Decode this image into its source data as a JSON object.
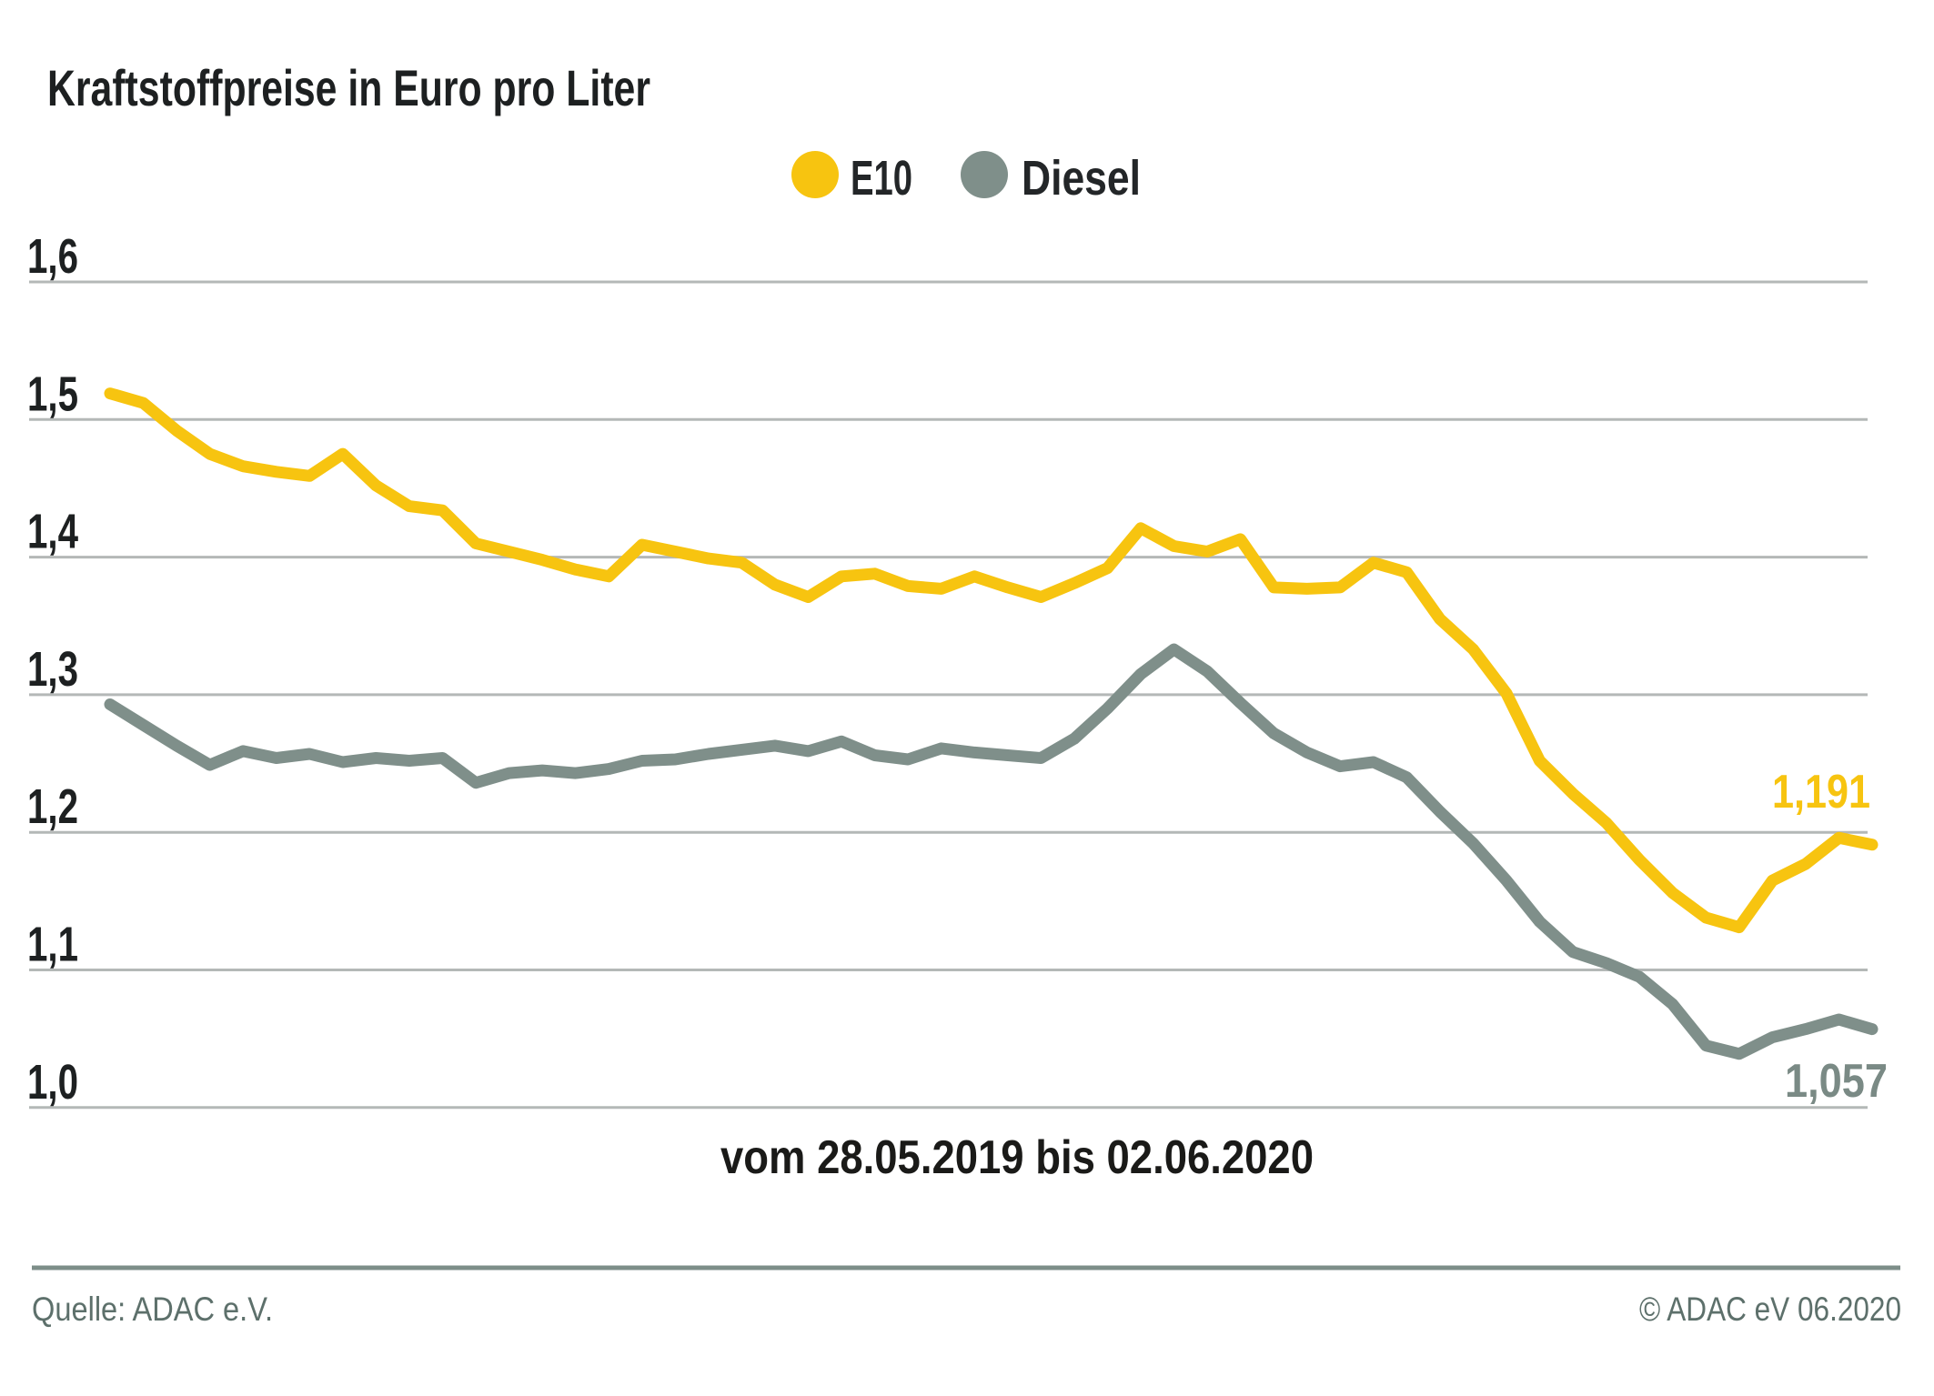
{
  "chart": {
    "title": "Kraftstoffpreise in Euro pro Liter",
    "caption": "vom 28.05.2019 bis 02.06.2020",
    "source": "Quelle: ADAC e.V.",
    "copyright": "© ADAC eV  06.2020",
    "end_labels": {
      "e10": "1,191",
      "diesel": "1,057"
    }
  },
  "colors": {
    "e10": "#f7c410",
    "diesel": "#7f8f8a",
    "e10_label": "#f7c410",
    "diesel_label": "#7a8a85",
    "gridline": "#b4b8b7",
    "footer_rule": "#7d8e89",
    "footer_text": "#5d706b",
    "text_dark": "#1d2021"
  },
  "chart_data": {
    "type": "line",
    "title": "Kraftstoffpreise in Euro pro Liter",
    "xlabel": "vom 28.05.2019 bis 02.06.2020",
    "ylabel": "Euro pro Liter",
    "x_start": "28.05.2019",
    "x_end": "02.06.2020",
    "x_frequency": "weekly",
    "ylim": [
      0.95,
      1.65
    ],
    "grid": "horizontal",
    "legend_position": "top-center",
    "y_ticks": [
      {
        "label": "1,6",
        "value": 1.6
      },
      {
        "label": "1,5",
        "value": 1.5
      },
      {
        "label": "1,4",
        "value": 1.4
      },
      {
        "label": "1,3",
        "value": 1.3
      },
      {
        "label": "1,2",
        "value": 1.2
      },
      {
        "label": "1,1",
        "value": 1.1
      },
      {
        "label": "1,0",
        "value": 1.0
      }
    ],
    "series": [
      {
        "name": "E10",
        "color": "#f7c410",
        "end_label": "1,191",
        "last_value": 1.191,
        "values": [
          1.519,
          1.512,
          1.492,
          1.475,
          1.466,
          1.462,
          1.459,
          1.475,
          1.452,
          1.437,
          1.434,
          1.41,
          1.404,
          1.398,
          1.391,
          1.386,
          1.409,
          1.404,
          1.399,
          1.396,
          1.38,
          1.371,
          1.386,
          1.388,
          1.379,
          1.377,
          1.386,
          1.378,
          1.371,
          1.381,
          1.392,
          1.421,
          1.408,
          1.404,
          1.413,
          1.378,
          1.377,
          1.378,
          1.396,
          1.389,
          1.355,
          1.333,
          1.301,
          1.252,
          1.228,
          1.207,
          1.18,
          1.156,
          1.138,
          1.131,
          1.165,
          1.177,
          1.196,
          1.191
        ]
      },
      {
        "name": "Diesel",
        "color": "#7f8f8a",
        "end_label": "1,057",
        "last_value": 1.057,
        "values": [
          1.293,
          1.278,
          1.263,
          1.249,
          1.259,
          1.254,
          1.257,
          1.251,
          1.254,
          1.252,
          1.254,
          1.236,
          1.243,
          1.245,
          1.243,
          1.246,
          1.252,
          1.253,
          1.257,
          1.26,
          1.263,
          1.259,
          1.266,
          1.256,
          1.253,
          1.261,
          1.258,
          1.256,
          1.254,
          1.268,
          1.29,
          1.315,
          1.333,
          1.317,
          1.294,
          1.272,
          1.258,
          1.248,
          1.251,
          1.24,
          1.215,
          1.192,
          1.165,
          1.135,
          1.113,
          1.105,
          1.095,
          1.075,
          1.045,
          1.039,
          1.051,
          1.057,
          1.064,
          1.057
        ]
      }
    ]
  }
}
